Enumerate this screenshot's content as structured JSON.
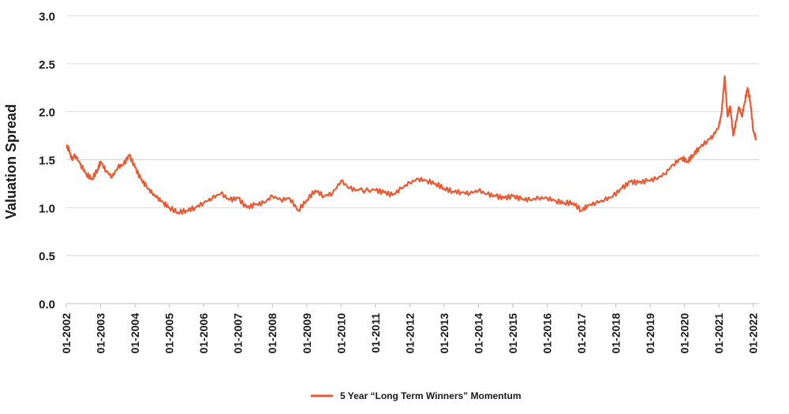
{
  "chart_data": {
    "type": "line",
    "title": "",
    "xlabel": "",
    "ylabel": "Valuation Spread",
    "ylim": [
      0,
      3.0
    ],
    "yticks": [
      "0.0",
      "0.5",
      "1.0",
      "1.5",
      "2.0",
      "2.5",
      "3.0"
    ],
    "xlim": [
      "2002-01",
      "2022-03"
    ],
    "xticks": [
      "01-2002",
      "01-2003",
      "01-2004",
      "01-2005",
      "01-2006",
      "01-2007",
      "01-2008",
      "01-2009",
      "01-2010",
      "01-2011",
      "01-2012",
      "01-2013",
      "01-2014",
      "01-2015",
      "01-2016",
      "01-2017",
      "01-2018",
      "01-2019",
      "01-2020",
      "01-2021",
      "01-2022"
    ],
    "grid": true,
    "legend_position": "bottom",
    "series": [
      {
        "name": "5 Year “Long Term Winners” Momentum",
        "color": "#e85a32",
        "points": [
          [
            "2002-01",
            1.65
          ],
          [
            "2002-02",
            1.6
          ],
          [
            "2002-03",
            1.5
          ],
          [
            "2002-04",
            1.55
          ],
          [
            "2002-06",
            1.45
          ],
          [
            "2002-08",
            1.35
          ],
          [
            "2002-10",
            1.3
          ],
          [
            "2002-12",
            1.4
          ],
          [
            "2003-01",
            1.48
          ],
          [
            "2003-03",
            1.38
          ],
          [
            "2003-05",
            1.32
          ],
          [
            "2003-07",
            1.42
          ],
          [
            "2003-09",
            1.45
          ],
          [
            "2003-11",
            1.55
          ],
          [
            "2004-01",
            1.42
          ],
          [
            "2004-03",
            1.3
          ],
          [
            "2004-05",
            1.22
          ],
          [
            "2004-07",
            1.15
          ],
          [
            "2004-09",
            1.1
          ],
          [
            "2004-11",
            1.05
          ],
          [
            "2005-01",
            1.0
          ],
          [
            "2005-04",
            0.95
          ],
          [
            "2005-07",
            0.97
          ],
          [
            "2005-10",
            1.0
          ],
          [
            "2006-01",
            1.05
          ],
          [
            "2006-04",
            1.1
          ],
          [
            "2006-07",
            1.15
          ],
          [
            "2006-10",
            1.08
          ],
          [
            "2007-01",
            1.1
          ],
          [
            "2007-04",
            1.0
          ],
          [
            "2007-07",
            1.03
          ],
          [
            "2007-10",
            1.05
          ],
          [
            "2008-01",
            1.12
          ],
          [
            "2008-04",
            1.08
          ],
          [
            "2008-07",
            1.1
          ],
          [
            "2008-10",
            0.97
          ],
          [
            "2009-01",
            1.08
          ],
          [
            "2009-04",
            1.18
          ],
          [
            "2009-07",
            1.12
          ],
          [
            "2009-10",
            1.15
          ],
          [
            "2010-01",
            1.28
          ],
          [
            "2010-04",
            1.2
          ],
          [
            "2010-07",
            1.18
          ],
          [
            "2011-01",
            1.18
          ],
          [
            "2011-04",
            1.16
          ],
          [
            "2011-07",
            1.13
          ],
          [
            "2011-10",
            1.2
          ],
          [
            "2012-01",
            1.26
          ],
          [
            "2012-04",
            1.3
          ],
          [
            "2012-07",
            1.28
          ],
          [
            "2012-10",
            1.25
          ],
          [
            "2013-01",
            1.2
          ],
          [
            "2013-04",
            1.17
          ],
          [
            "2013-07",
            1.16
          ],
          [
            "2013-10",
            1.15
          ],
          [
            "2014-01",
            1.18
          ],
          [
            "2014-04",
            1.14
          ],
          [
            "2014-07",
            1.12
          ],
          [
            "2014-10",
            1.1
          ],
          [
            "2015-01",
            1.12
          ],
          [
            "2015-04",
            1.09
          ],
          [
            "2015-07",
            1.08
          ],
          [
            "2015-10",
            1.1
          ],
          [
            "2016-01",
            1.1
          ],
          [
            "2016-04",
            1.07
          ],
          [
            "2016-07",
            1.05
          ],
          [
            "2016-10",
            1.05
          ],
          [
            "2017-01",
            0.97
          ],
          [
            "2017-03",
            1.02
          ],
          [
            "2017-06",
            1.05
          ],
          [
            "2017-09",
            1.08
          ],
          [
            "2017-12",
            1.12
          ],
          [
            "2018-03",
            1.2
          ],
          [
            "2018-06",
            1.27
          ],
          [
            "2018-09",
            1.26
          ],
          [
            "2018-12",
            1.28
          ],
          [
            "2019-03",
            1.3
          ],
          [
            "2019-06",
            1.35
          ],
          [
            "2019-09",
            1.45
          ],
          [
            "2019-12",
            1.52
          ],
          [
            "2020-02",
            1.48
          ],
          [
            "2020-04",
            1.55
          ],
          [
            "2020-06",
            1.62
          ],
          [
            "2020-09",
            1.7
          ],
          [
            "2020-11",
            1.75
          ],
          [
            "2021-01",
            1.85
          ],
          [
            "2021-02",
            2.0
          ],
          [
            "2021-03",
            2.37
          ],
          [
            "2021-04",
            1.95
          ],
          [
            "2021-05",
            2.05
          ],
          [
            "2021-06",
            1.75
          ],
          [
            "2021-07",
            1.9
          ],
          [
            "2021-08",
            2.05
          ],
          [
            "2021-09",
            1.95
          ],
          [
            "2021-10",
            2.1
          ],
          [
            "2021-11",
            2.25
          ],
          [
            "2021-12",
            2.1
          ],
          [
            "2022-01",
            1.8
          ],
          [
            "2022-02",
            1.72
          ]
        ]
      }
    ]
  }
}
